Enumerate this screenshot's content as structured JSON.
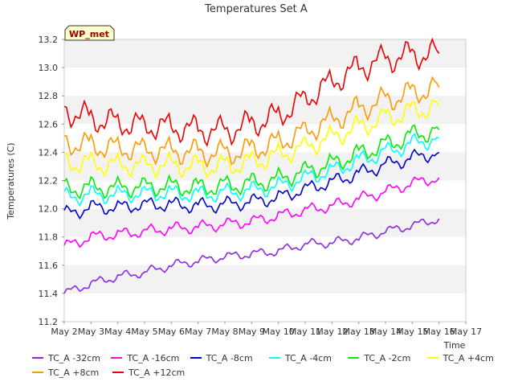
{
  "chart_data": {
    "type": "line",
    "title": "Temperatures Set A",
    "xlabel": "Time",
    "ylabel": "Temperatures (C)",
    "xlim": [
      "May 2",
      "May 17"
    ],
    "ylim": [
      11.2,
      13.2
    ],
    "yticks": [
      "11.2",
      "11.4",
      "11.6",
      "11.8",
      "12.0",
      "12.2",
      "12.4",
      "12.6",
      "12.8",
      "13.0",
      "13.2"
    ],
    "xticks": [
      "May 2",
      "May 3",
      "May 4",
      "May 5",
      "May 6",
      "May 7",
      "May 8",
      "May 9",
      "May 10",
      "May 11",
      "May 12",
      "May 13",
      "May 14",
      "May 15",
      "May 16",
      "May 17"
    ],
    "grid": "horizontal bands",
    "annotation": "WP_met",
    "x": [
      "May 2",
      "May 3",
      "May 4",
      "May 5",
      "May 6",
      "May 7",
      "May 8",
      "May 9",
      "May 10",
      "May 11",
      "May 12",
      "May 13",
      "May 14",
      "May 15",
      "May 16"
    ],
    "series": [
      {
        "name": "TC_A -32cm",
        "color": "#8a2be2",
        "values": [
          11.4,
          11.47,
          11.52,
          11.55,
          11.6,
          11.63,
          11.66,
          11.68,
          11.7,
          11.75,
          11.76,
          11.79,
          11.84,
          11.88,
          11.93
        ]
      },
      {
        "name": "TC_A -16cm",
        "color": "#ff00ff",
        "values": [
          11.73,
          11.8,
          11.82,
          11.84,
          11.86,
          11.87,
          11.89,
          11.91,
          11.95,
          11.99,
          12.02,
          12.07,
          12.12,
          12.18,
          12.22
        ]
      },
      {
        "name": "TC_A -8cm",
        "color": "#0000cd",
        "values": [
          11.96,
          12.01,
          12.01,
          12.03,
          12.03,
          12.02,
          12.03,
          12.05,
          12.08,
          12.14,
          12.19,
          12.25,
          12.31,
          12.36,
          12.4
        ]
      },
      {
        "name": "TC_A -4cm",
        "color": "#00ffff",
        "values": [
          12.08,
          12.1,
          12.1,
          12.11,
          12.11,
          12.1,
          12.11,
          12.13,
          12.16,
          12.22,
          12.27,
          12.34,
          12.4,
          12.46,
          12.5
        ]
      },
      {
        "name": "TC_A -2cm",
        "color": "#00ee00",
        "values": [
          12.14,
          12.15,
          12.15,
          12.16,
          12.16,
          12.15,
          12.16,
          12.18,
          12.21,
          12.27,
          12.32,
          12.39,
          12.45,
          12.52,
          12.56
        ]
      },
      {
        "name": "TC_A +4cm",
        "color": "#ffff00",
        "values": [
          12.33,
          12.32,
          12.31,
          12.31,
          12.31,
          12.3,
          12.3,
          12.33,
          12.38,
          12.44,
          12.51,
          12.58,
          12.64,
          12.69,
          12.73
        ]
      },
      {
        "name": "TC_A +8cm",
        "color": "#ff9900",
        "values": [
          12.47,
          12.45,
          12.43,
          12.42,
          12.41,
          12.4,
          12.39,
          12.42,
          12.47,
          12.55,
          12.63,
          12.71,
          12.77,
          12.82,
          12.86
        ]
      },
      {
        "name": "TC_A +12cm",
        "color": "#ee0000",
        "values": [
          12.7,
          12.64,
          12.61,
          12.59,
          12.58,
          12.56,
          12.55,
          12.6,
          12.66,
          12.78,
          12.9,
          13.0,
          13.06,
          13.09,
          13.1
        ]
      }
    ]
  }
}
